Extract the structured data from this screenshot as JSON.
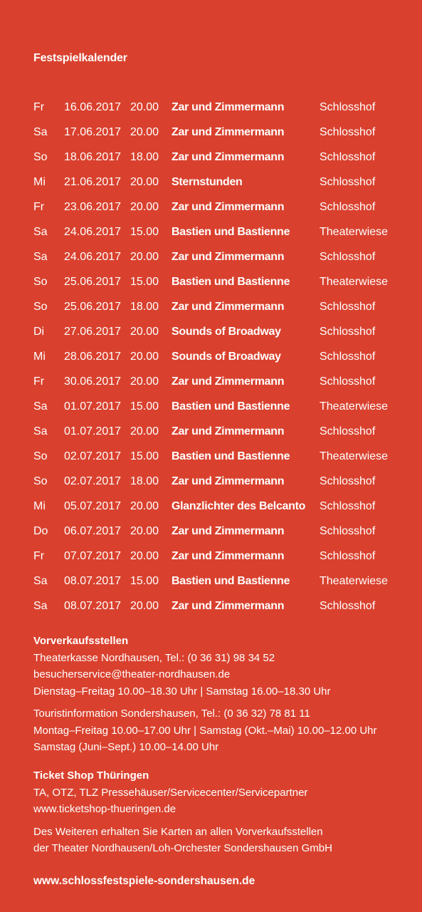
{
  "title": "Festspielkalender",
  "schedule": [
    {
      "day": "Fr",
      "date": "16.06.2017",
      "time": "20.00",
      "title": "Zar und Zimmermann",
      "venue": "Schlosshof"
    },
    {
      "day": "Sa",
      "date": "17.06.2017",
      "time": "20.00",
      "title": "Zar und Zimmermann",
      "venue": "Schlosshof"
    },
    {
      "day": "So",
      "date": "18.06.2017",
      "time": "18.00",
      "title": "Zar und Zimmermann",
      "venue": "Schlosshof"
    },
    {
      "day": "Mi",
      "date": "21.06.2017",
      "time": "20.00",
      "title": "Sternstunden",
      "venue": "Schlosshof"
    },
    {
      "day": "Fr",
      "date": "23.06.2017",
      "time": "20.00",
      "title": "Zar und Zimmermann",
      "venue": "Schlosshof"
    },
    {
      "day": "Sa",
      "date": "24.06.2017",
      "time": "15.00",
      "title": "Bastien und Bastienne",
      "venue": "Theaterwiese"
    },
    {
      "day": "Sa",
      "date": "24.06.2017",
      "time": "20.00",
      "title": "Zar und Zimmermann",
      "venue": "Schlosshof"
    },
    {
      "day": "So",
      "date": "25.06.2017",
      "time": "15.00",
      "title": "Bastien und Bastienne",
      "venue": "Theaterwiese"
    },
    {
      "day": "So",
      "date": "25.06.2017",
      "time": "18.00",
      "title": "Zar und Zimmermann",
      "venue": "Schlosshof"
    },
    {
      "day": "Di",
      "date": "27.06.2017",
      "time": "20.00",
      "title": "Sounds of Broadway",
      "venue": "Schlosshof"
    },
    {
      "day": "Mi",
      "date": "28.06.2017",
      "time": "20.00",
      "title": "Sounds of Broadway",
      "venue": "Schlosshof"
    },
    {
      "day": "Fr",
      "date": "30.06.2017",
      "time": "20.00",
      "title": "Zar und Zimmermann",
      "venue": "Schlosshof"
    },
    {
      "day": "Sa",
      "date": "01.07.2017",
      "time": "15.00",
      "title": "Bastien und Bastienne",
      "venue": "Theaterwiese"
    },
    {
      "day": "Sa",
      "date": "01.07.2017",
      "time": "20.00",
      "title": "Zar und Zimmermann",
      "venue": "Schlosshof"
    },
    {
      "day": "So",
      "date": "02.07.2017",
      "time": "15.00",
      "title": "Bastien und Bastienne",
      "venue": "Theaterwiese"
    },
    {
      "day": "So",
      "date": "02.07.2017",
      "time": "18.00",
      "title": "Zar und Zimmermann",
      "venue": "Schlosshof"
    },
    {
      "day": "Mi",
      "date": "05.07.2017",
      "time": "20.00",
      "title": "Glanzlichter des Belcanto",
      "venue": "Schlosshof"
    },
    {
      "day": "Do",
      "date": "06.07.2017",
      "time": "20.00",
      "title": "Zar und Zimmermann",
      "venue": "Schlosshof"
    },
    {
      "day": "Fr",
      "date": "07.07.2017",
      "time": "20.00",
      "title": "Zar und Zimmermann",
      "venue": "Schlosshof"
    },
    {
      "day": "Sa",
      "date": "08.07.2017",
      "time": "15.00",
      "title": "Bastien und Bastienne",
      "venue": "Theaterwiese"
    },
    {
      "day": "Sa",
      "date": "08.07.2017",
      "time": "20.00",
      "title": "Zar und Zimmermann",
      "venue": "Schlosshof"
    }
  ],
  "presale": {
    "heading": "Vorverkaufsstellen",
    "theater": {
      "line1": "Theaterkasse Nordhausen, Tel.: (0 36 31) 98 34 52",
      "email": "besucherservice@theater-nordhausen.de",
      "hours": "Dienstag–Freitag 10.00–18.30 Uhr | Samstag 16.00–18.30 Uhr"
    },
    "tourist": {
      "line1": "Touristinformation Sondershausen, Tel.: (0 36 32) 78 81 11",
      "hours1": "Montag–Freitag 10.00–17.00 Uhr | Samstag (Okt.–Mai) 10.00–12.00 Uhr",
      "hours2": "Samstag (Juni–Sept.) 10.00–14.00 Uhr"
    }
  },
  "ticketshop": {
    "heading": "Ticket Shop Thüringen",
    "line1": "TA, OTZ, TLZ Pressehäuser/Servicecenter/Servicepartner",
    "url": "www.ticketshop-thueringen.de",
    "note1": "Des Weiteren erhalten Sie Karten an allen Vorverkaufsstellen",
    "note2": "der Theater Nordhausen/Loh-Orchester Sondershausen GmbH"
  },
  "website": "www.schlossfestspiele-sondershausen.de",
  "colors": {
    "background": "#d9412e",
    "text": "#ffffff"
  }
}
